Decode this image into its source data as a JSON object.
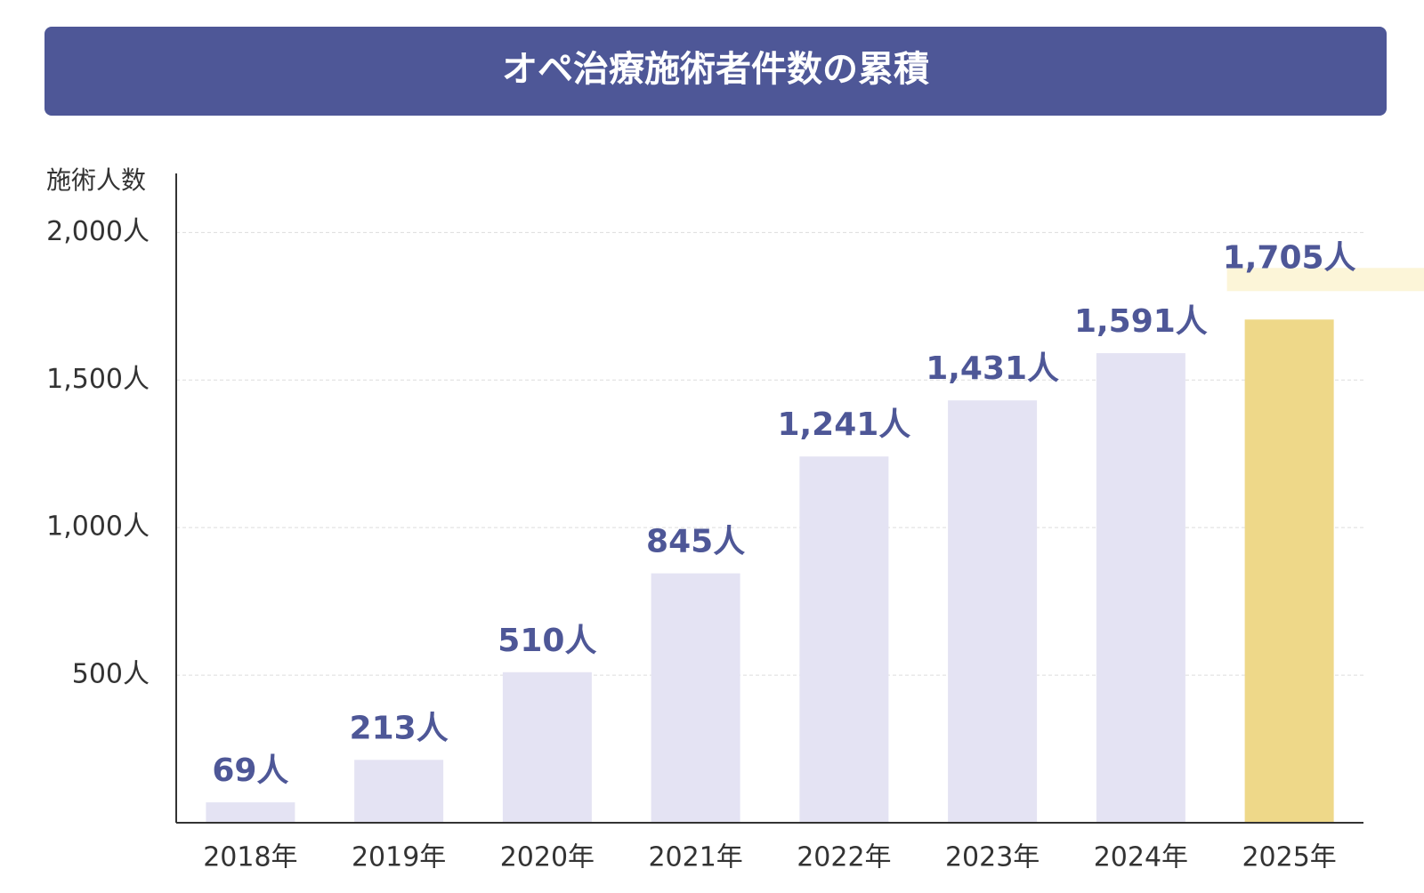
{
  "chart_data": {
    "type": "bar",
    "title": "オペ治療施術者件数の累積",
    "y_label": "施術人数",
    "categories": [
      "2018年",
      "2019年",
      "2020年",
      "2021年",
      "2022年",
      "2023年",
      "2024年",
      "2025年"
    ],
    "values": [
      69,
      213,
      510,
      845,
      1241,
      1431,
      1591,
      1705
    ],
    "value_labels": [
      "69人",
      "213人",
      "510人",
      "845人",
      "1,241人",
      "1,431人",
      "1,591人",
      "1,705人"
    ],
    "colors": [
      "#e4e3f3",
      "#e4e3f3",
      "#e4e3f3",
      "#e4e3f3",
      "#e4e3f3",
      "#e4e3f3",
      "#e4e3f3",
      "#eed889"
    ],
    "ylim": [
      0,
      2200
    ],
    "yticks": [
      {
        "value": 500,
        "label": "500人"
      },
      {
        "value": 1000,
        "label": "1,000人"
      },
      {
        "value": 1500,
        "label": "1,500人"
      },
      {
        "value": 2000,
        "label": "2,000人"
      }
    ],
    "grid": true
  }
}
